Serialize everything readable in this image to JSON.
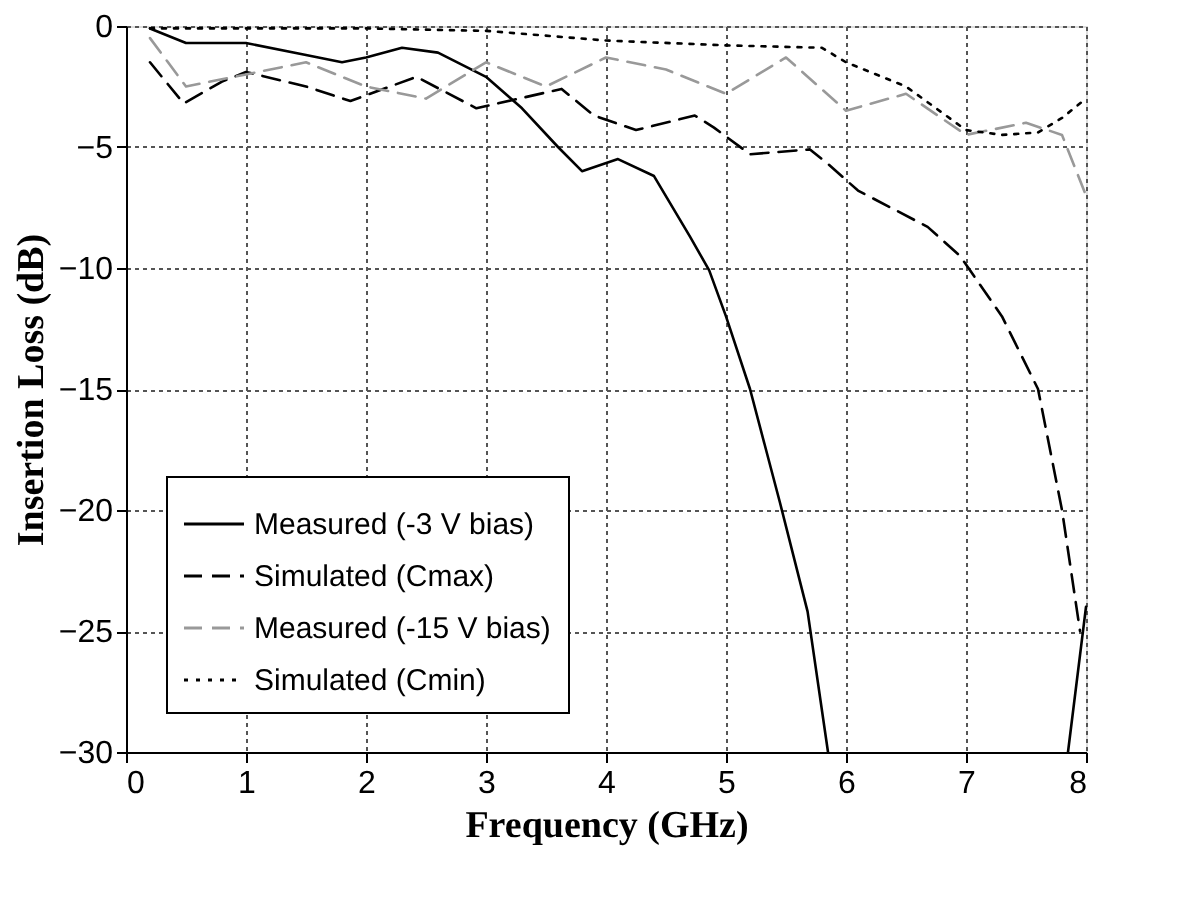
{
  "chart_data": {
    "type": "line",
    "xlabel": "Frequency (GHz)",
    "ylabel": "Insertion Loss (dB)",
    "xlim": [
      0,
      8
    ],
    "ylim": [
      -30,
      0
    ],
    "xticks": [
      0,
      1,
      2,
      3,
      4,
      5,
      6,
      7,
      8
    ],
    "yticks": [
      -30,
      -25,
      -20,
      -15,
      -10,
      -5,
      0
    ],
    "grid": true,
    "legend": "bottom left",
    "marker": "none",
    "series": [
      {
        "name": "Measured (-3 V bias)",
        "color": "#000000",
        "line_style": "solid",
        "x": [
          0.2,
          0.5,
          1.0,
          1.5,
          1.8,
          2.0,
          2.3,
          2.6,
          3.0,
          3.3,
          3.6,
          3.8,
          4.1,
          4.4,
          4.7,
          4.86,
          5.0,
          5.2,
          5.45,
          5.68,
          5.85,
          6.9,
          7.85,
          8.0
        ],
        "values": [
          -0.1,
          -0.7,
          -0.7,
          -1.2,
          -1.5,
          -1.3,
          -0.9,
          -1.1,
          -2.1,
          -3.4,
          -5.0,
          -6.0,
          -5.5,
          -6.2,
          -8.7,
          -10.1,
          -12,
          -15,
          -19.7,
          -24.2,
          -30,
          null,
          -30,
          -24
        ]
      },
      {
        "name": "Simulated (Cmax)",
        "color": "#000000",
        "line_style": "dashed",
        "x": [
          0.2,
          0.48,
          0.8,
          1.0,
          1.5,
          1.87,
          2.42,
          2.92,
          3.63,
          3.9,
          4.25,
          4.74,
          4.9,
          5.2,
          5.7,
          5.85,
          6.1,
          6.68,
          6.95,
          7.3,
          7.6,
          7.8,
          7.95
        ],
        "values": [
          -1.5,
          -3.2,
          -2.3,
          -1.9,
          -2.5,
          -3.1,
          -2.1,
          -3.4,
          -2.6,
          -3.7,
          -4.3,
          -3.7,
          -4.2,
          -5.3,
          -5.1,
          -5.7,
          -6.8,
          -8.3,
          -9.5,
          -12,
          -15,
          -20,
          -25
        ]
      },
      {
        "name": "Measured (-15 V bias)",
        "color": "#999999",
        "line_style": "dashed",
        "x": [
          0.2,
          0.5,
          1.0,
          1.5,
          2.0,
          2.5,
          3.0,
          3.5,
          4.0,
          4.5,
          5.0,
          5.5,
          6.0,
          6.5,
          7.0,
          7.5,
          7.8,
          8.0
        ],
        "values": [
          -0.5,
          -2.5,
          -2.0,
          -1.5,
          -2.5,
          -3.0,
          -1.5,
          -2.5,
          -1.3,
          -1.8,
          -2.8,
          -1.3,
          -3.5,
          -2.8,
          -4.5,
          -4.0,
          -4.5,
          -7.0
        ]
      },
      {
        "name": "Simulated (Cmin)",
        "color": "#000000",
        "line_style": "dotted",
        "x": [
          0.2,
          1.0,
          2.0,
          3.0,
          4.0,
          5.0,
          5.8,
          6.0,
          6.5,
          7.0,
          7.3,
          7.6,
          7.8,
          8.0
        ],
        "values": [
          -0.1,
          -0.1,
          -0.1,
          -0.2,
          -0.6,
          -0.8,
          -0.9,
          -1.5,
          -2.5,
          -4.3,
          -4.5,
          -4.4,
          -3.8,
          -3.0
        ]
      }
    ]
  }
}
